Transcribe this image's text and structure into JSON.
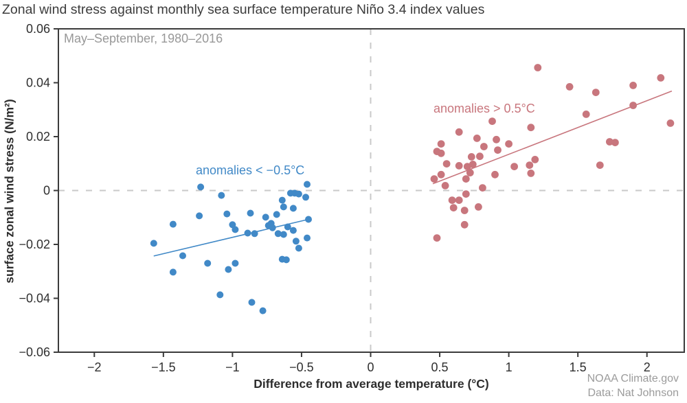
{
  "title": "Zonal wind stress against monthly sea surface temperature Niño 3.4 index values",
  "subtitle": "May–September, 1980–2016",
  "attribution": {
    "line1": "NOAA Climate.gov",
    "line2": "Data: Nat Johnson"
  },
  "colors": {
    "blue": "#4189c7",
    "red": "#c8767d",
    "frame": "#3a3a3a",
    "dashed_reference": "#c9c9c9",
    "tick_text": "#2f2f2f",
    "muted_text": "#989898"
  },
  "chart_data": {
    "type": "scatter",
    "title": "Zonal wind stress against monthly sea surface temperature Niño 3.4 index values",
    "subtitle": "May–September, 1980–2016",
    "xlabel": "Difference from average temperature (°C)",
    "ylabel": "surface zonal wind stress (N/m²)",
    "xlim": [
      -2.26,
      2.27
    ],
    "ylim": [
      -0.06,
      0.06
    ],
    "grid": false,
    "reference_lines": {
      "vertical_x": 0,
      "horizontal_y": 0,
      "style": "dashed"
    },
    "x_ticks": [
      {
        "v": -2,
        "label": "−2"
      },
      {
        "v": -1.5,
        "label": "−1.5"
      },
      {
        "v": -1,
        "label": "−1"
      },
      {
        "v": -0.5,
        "label": "−0.5"
      },
      {
        "v": 0,
        "label": "0"
      },
      {
        "v": 0.5,
        "label": "0.5"
      },
      {
        "v": 1,
        "label": "1"
      },
      {
        "v": 1.5,
        "label": "1.5"
      },
      {
        "v": 2,
        "label": "2"
      }
    ],
    "y_ticks": [
      {
        "v": 0.06,
        "label": "0.06"
      },
      {
        "v": 0.04,
        "label": "0.04"
      },
      {
        "v": 0.02,
        "label": "0.02"
      },
      {
        "v": 0,
        "label": "0"
      },
      {
        "v": -0.02,
        "label": "−0.02"
      },
      {
        "v": -0.04,
        "label": "−0.04"
      },
      {
        "v": -0.06,
        "label": "−0.06"
      }
    ],
    "series": [
      {
        "key": "negative-anomalies",
        "name": "anomalies < −0.5°C",
        "color": "#4189c7",
        "radius": 5,
        "trendline": {
          "x1": -1.57,
          "y1": -0.0243,
          "x2": -0.45,
          "y2": -0.0107
        },
        "points": [
          [
            -1.23,
            0.0013
          ],
          [
            -1.08,
            -0.0018
          ],
          [
            -1.04,
            -0.0087
          ],
          [
            -1.24,
            -0.0094
          ],
          [
            -1.43,
            -0.0125
          ],
          [
            -1.0,
            -0.0127
          ],
          [
            -0.98,
            -0.0145
          ],
          [
            -1.57,
            -0.0196
          ],
          [
            -0.87,
            -0.0084
          ],
          [
            -0.76,
            -0.0099
          ],
          [
            -0.68,
            -0.0089
          ],
          [
            -0.72,
            -0.0122
          ],
          [
            -0.74,
            -0.013
          ],
          [
            -0.89,
            -0.0158
          ],
          [
            -0.84,
            -0.016
          ],
          [
            -1.36,
            -0.0242
          ],
          [
            -1.43,
            -0.0303
          ],
          [
            -1.18,
            -0.027
          ],
          [
            -1.03,
            -0.0293
          ],
          [
            -0.98,
            -0.027
          ],
          [
            -1.09,
            -0.0387
          ],
          [
            -0.86,
            -0.0415
          ],
          [
            -0.78,
            -0.0446
          ],
          [
            -0.46,
            0.0023
          ],
          [
            -0.58,
            -0.001
          ],
          [
            -0.55,
            -0.001
          ],
          [
            -0.52,
            -0.0013
          ],
          [
            -0.47,
            -0.0025
          ],
          [
            -0.64,
            -0.0036
          ],
          [
            -0.63,
            -0.0061
          ],
          [
            -0.56,
            -0.0066
          ],
          [
            -0.71,
            -0.0138
          ],
          [
            -0.6,
            -0.0135
          ],
          [
            -0.67,
            -0.016
          ],
          [
            -0.63,
            -0.0163
          ],
          [
            -0.56,
            -0.0148
          ],
          [
            -0.54,
            -0.0188
          ],
          [
            -0.52,
            -0.0214
          ],
          [
            -0.46,
            -0.0176
          ],
          [
            -0.45,
            -0.0107
          ],
          [
            -0.64,
            -0.0255
          ],
          [
            -0.61,
            -0.0257
          ]
        ]
      },
      {
        "key": "positive-anomalies",
        "name": "anomalies > 0.5°C",
        "color": "#c8767d",
        "radius": 5.4,
        "trendline": {
          "x1": 0.45,
          "y1": 0.0025,
          "x2": 2.18,
          "y2": 0.0369
        },
        "points": [
          [
            1.21,
            0.0456
          ],
          [
            1.44,
            0.0385
          ],
          [
            1.63,
            0.0364
          ],
          [
            1.9,
            0.039
          ],
          [
            2.1,
            0.0418
          ],
          [
            1.9,
            0.0316
          ],
          [
            1.56,
            0.0283
          ],
          [
            2.17,
            0.025
          ],
          [
            1.73,
            0.0181
          ],
          [
            1.77,
            0.0178
          ],
          [
            1.66,
            0.0094
          ],
          [
            0.88,
            0.0257
          ],
          [
            1.16,
            0.0234
          ],
          [
            0.64,
            0.0217
          ],
          [
            0.77,
            0.0194
          ],
          [
            0.91,
            0.0189
          ],
          [
            1.0,
            0.0173
          ],
          [
            0.51,
            0.0173
          ],
          [
            0.48,
            0.0145
          ],
          [
            0.82,
            0.0163
          ],
          [
            0.92,
            0.015
          ],
          [
            0.51,
            0.0138
          ],
          [
            0.73,
            0.0125
          ],
          [
            0.79,
            0.0127
          ],
          [
            0.55,
            0.0099
          ],
          [
            0.64,
            0.0092
          ],
          [
            0.7,
            0.0089
          ],
          [
            0.74,
            0.0097
          ],
          [
            1.19,
            0.0115
          ],
          [
            1.15,
            0.0094
          ],
          [
            1.16,
            0.0064
          ],
          [
            1.04,
            0.0089
          ],
          [
            0.46,
            0.0043
          ],
          [
            0.51,
            0.0059
          ],
          [
            0.54,
            0.0018
          ],
          [
            0.72,
            0.0066
          ],
          [
            0.69,
            0.0043
          ],
          [
            0.9,
            0.0059
          ],
          [
            0.81,
            0.001
          ],
          [
            0.69,
            -0.0013
          ],
          [
            0.64,
            -0.0036
          ],
          [
            0.59,
            -0.0036
          ],
          [
            0.6,
            -0.0064
          ],
          [
            0.68,
            -0.0074
          ],
          [
            0.78,
            -0.0061
          ],
          [
            0.68,
            -0.0127
          ],
          [
            0.48,
            -0.0176
          ]
        ]
      }
    ],
    "legend_position": "none",
    "annotations_note": "series names are drawn as colored in-plot labels"
  }
}
